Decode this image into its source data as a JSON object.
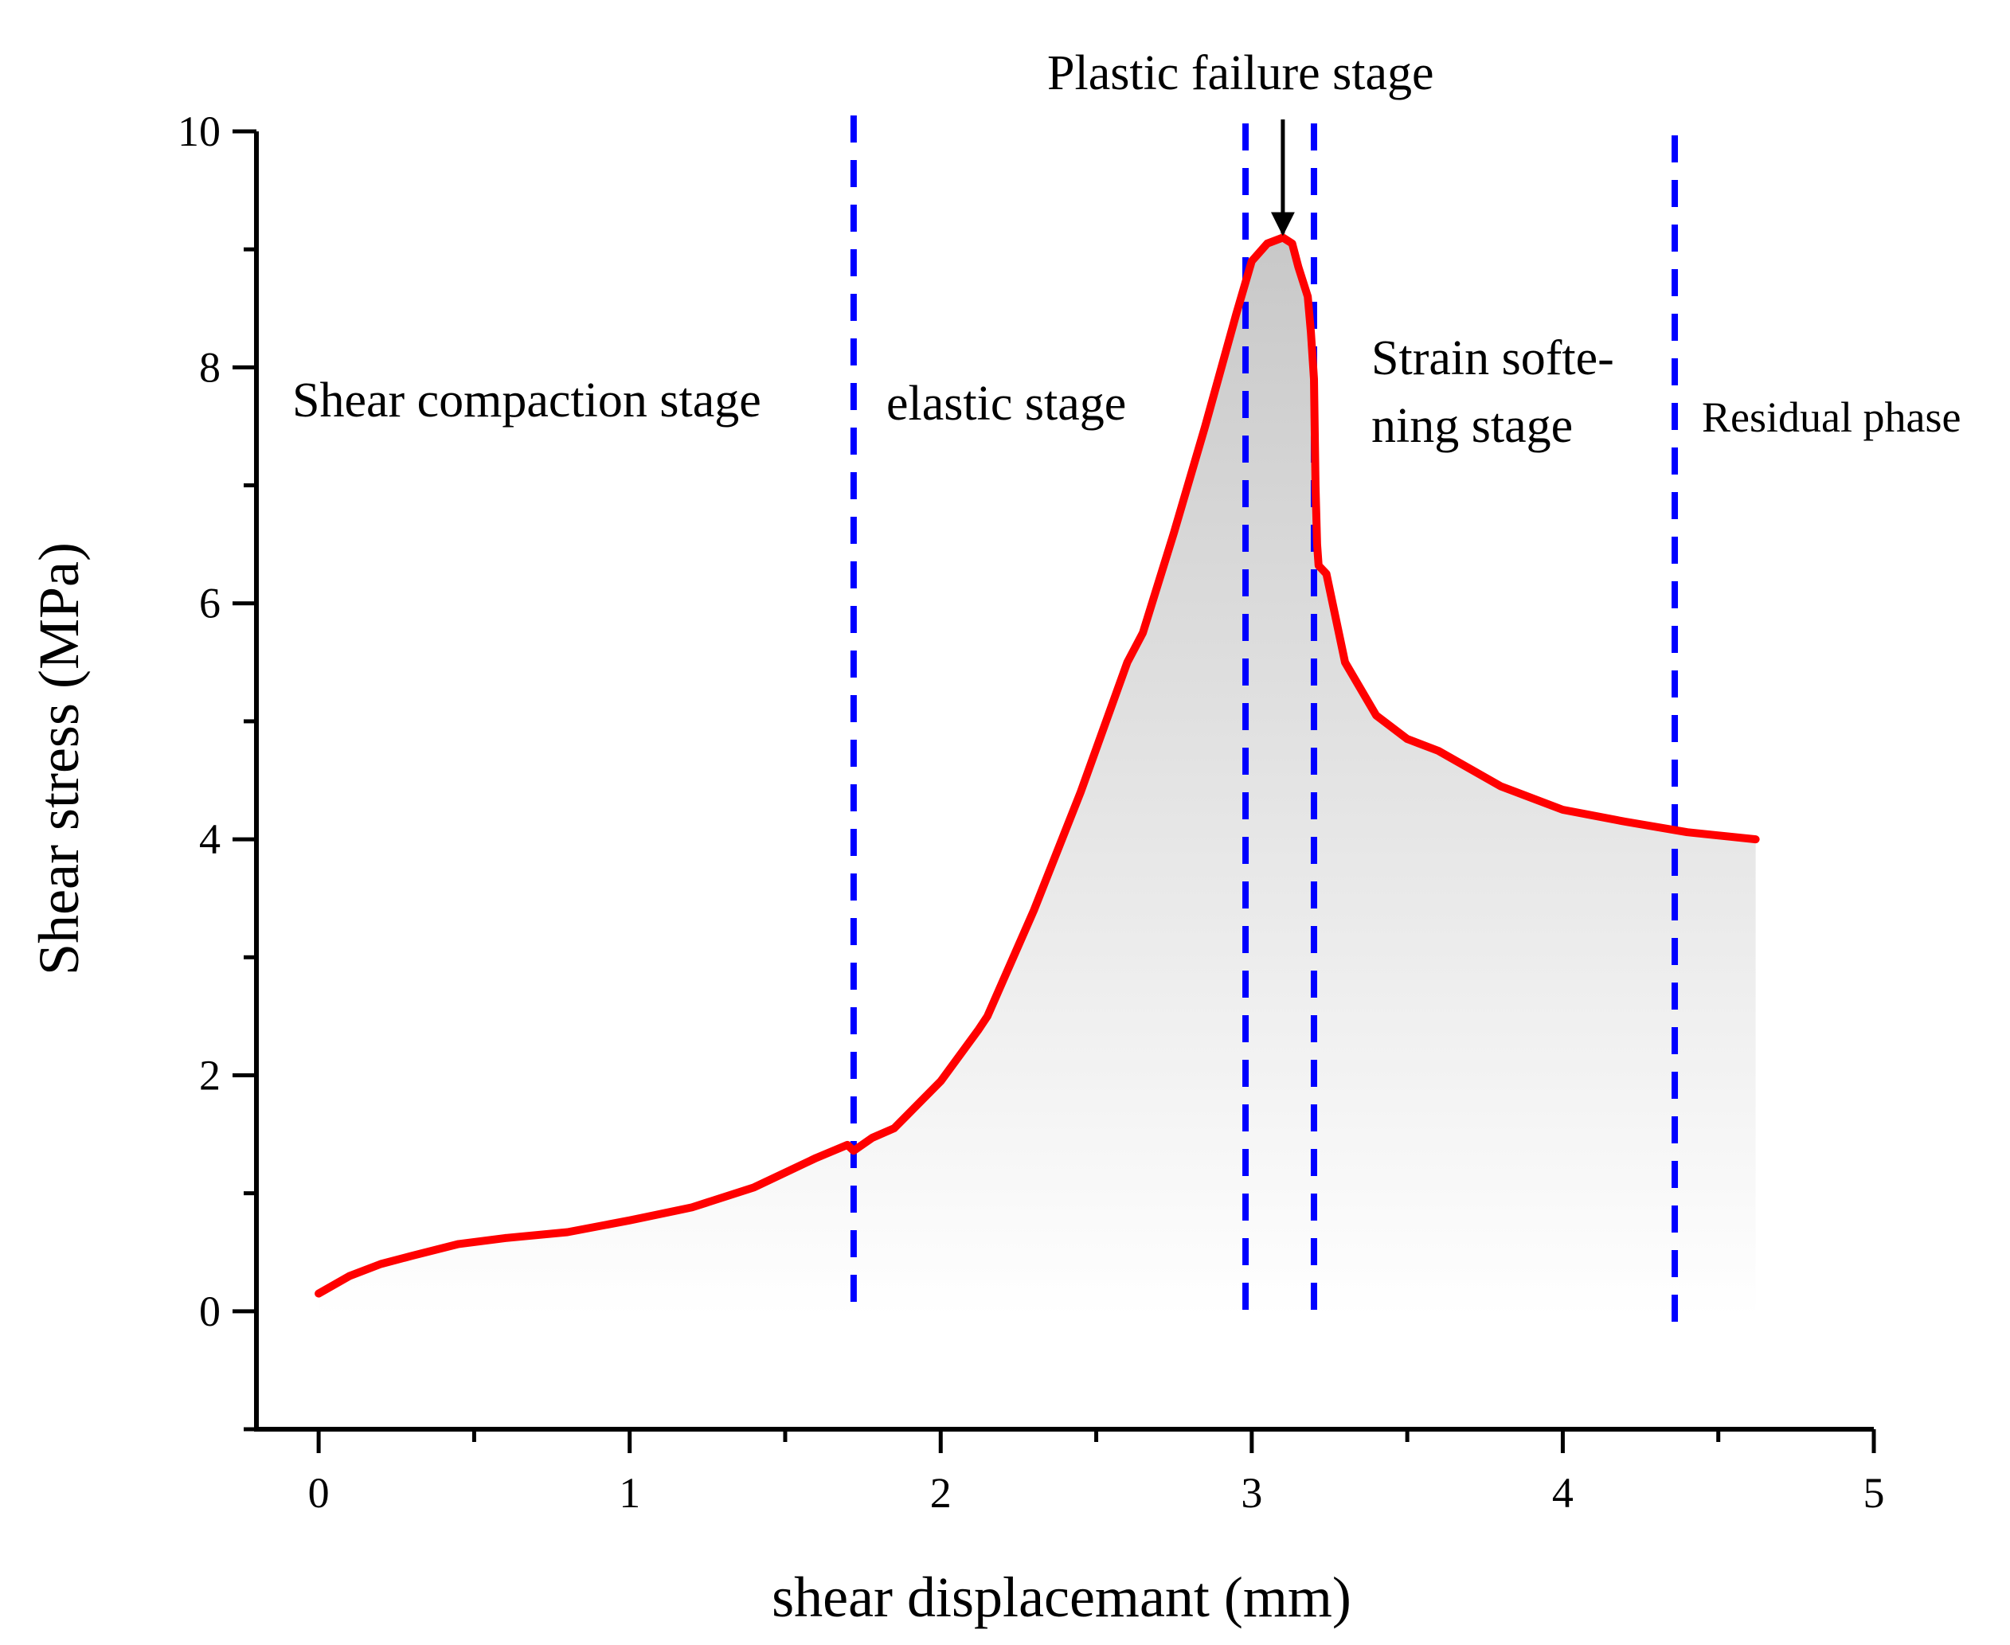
{
  "chart_data": {
    "type": "line",
    "xlabel": "shear displacemant (mm)",
    "ylabel": "Shear stress (MPa)",
    "xlim": [
      -0.2,
      5
    ],
    "ylim": [
      -1,
      10
    ],
    "xticks": [
      0,
      1,
      2,
      3,
      4,
      5
    ],
    "xtick_labels": [
      "0",
      "1",
      "2",
      "3",
      "4",
      "5"
    ],
    "yticks": [
      0,
      2,
      4,
      6,
      8,
      10
    ],
    "ytick_labels": [
      "0",
      "2",
      "4",
      "6",
      "8",
      "10"
    ],
    "x_minor_step": 0.5,
    "y_minor_step": 1,
    "grid": false,
    "series": [
      {
        "name": "shear stress curve",
        "color": "#ff0000",
        "x": [
          0,
          0.1,
          0.2,
          0.3,
          0.45,
          0.6,
          0.8,
          1.0,
          1.2,
          1.4,
          1.6,
          1.7,
          1.72,
          1.78,
          1.85,
          2.0,
          2.12,
          2.15,
          2.3,
          2.45,
          2.6,
          2.65,
          2.75,
          2.85,
          2.95,
          3.0,
          3.05,
          3.1,
          3.13,
          3.15,
          3.18,
          3.19,
          3.2,
          3.205,
          3.21,
          3.215,
          3.24,
          3.3,
          3.4,
          3.5,
          3.6,
          3.8,
          4.0,
          4.2,
          4.4,
          4.62
        ],
        "y": [
          0.15,
          0.3,
          0.4,
          0.47,
          0.57,
          0.62,
          0.67,
          0.77,
          0.88,
          1.05,
          1.3,
          1.41,
          1.36,
          1.47,
          1.55,
          1.95,
          2.38,
          2.5,
          3.4,
          4.4,
          5.5,
          5.75,
          6.6,
          7.5,
          8.45,
          8.9,
          9.05,
          9.1,
          9.05,
          8.85,
          8.6,
          8.3,
          7.9,
          7.0,
          6.5,
          6.32,
          6.25,
          5.5,
          5.05,
          4.85,
          4.75,
          4.45,
          4.25,
          4.15,
          4.06,
          4.0
        ]
      }
    ],
    "fill_under_curve": {
      "top_color": "#c8c8c8",
      "bottom_color": "#ffffff"
    },
    "stage_dividers": {
      "color": "#0000ff",
      "x": [
        1.72,
        2.98,
        3.2,
        4.36
      ]
    },
    "annotations": [
      {
        "id": "shear-compaction",
        "text": "Shear compaction stage"
      },
      {
        "id": "elastic",
        "text": "elastic stage"
      },
      {
        "id": "plastic-failure",
        "text": "Plastic failure stage"
      },
      {
        "id": "strain-softening-1",
        "text": "Strain softe-"
      },
      {
        "id": "strain-softening-2",
        "text": "ning stage"
      },
      {
        "id": "residual",
        "text": "Residual phase"
      }
    ],
    "peak_arrow": {
      "x": 3.1,
      "y": 9.1
    }
  }
}
